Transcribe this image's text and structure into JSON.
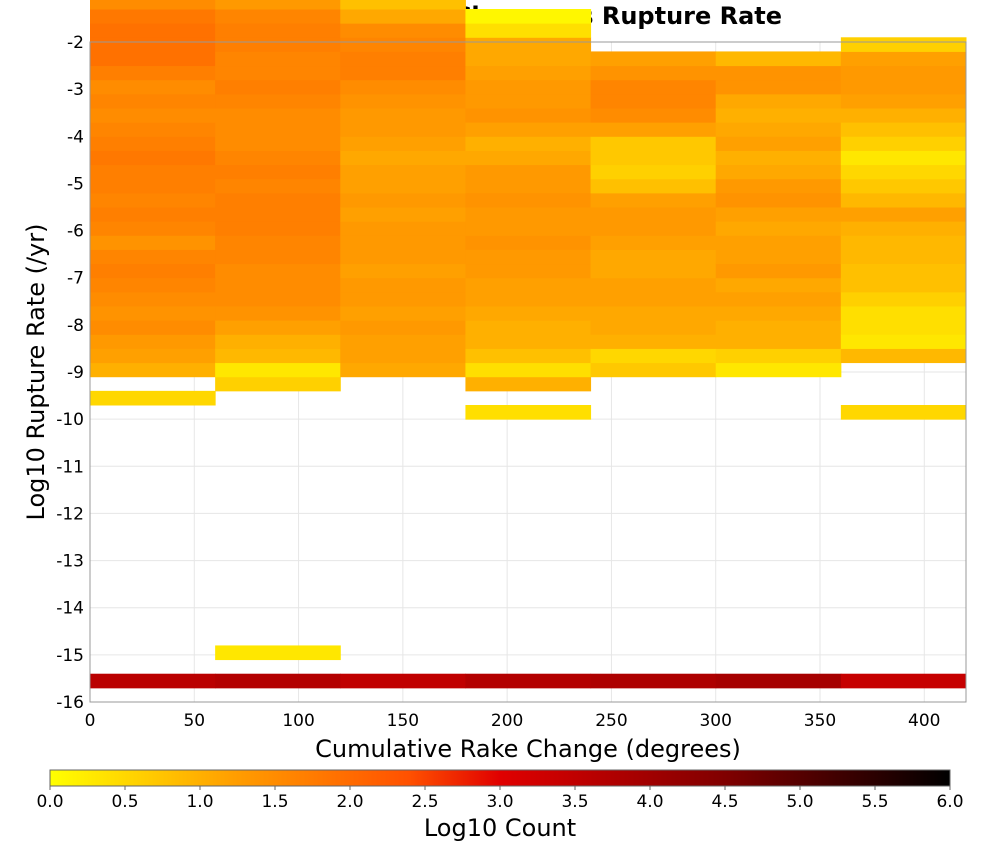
{
  "chart_data": {
    "type": "heatmap",
    "title": "Cumulative Rake Change vs Rupture Rate",
    "xlabel": "Cumulative Rake Change (degrees)",
    "ylabel": "Log10 Rupture Rate (/yr)",
    "xlim": [
      0,
      420
    ],
    "ylim": [
      -16,
      -2
    ],
    "x_ticks": [
      "0",
      "50",
      "100",
      "150",
      "200",
      "250",
      "300",
      "350",
      "400"
    ],
    "y_ticks": [
      "-2",
      "-3",
      "-4",
      "-5",
      "-6",
      "-7",
      "-8",
      "-9",
      "-10",
      "-11",
      "-12",
      "-13",
      "-14",
      "-15",
      "-16"
    ],
    "grid": true,
    "x_bin_width": 60,
    "y_bin_height": 0.3,
    "colorbar": {
      "label": "Log10 Count",
      "range": [
        0.0,
        6.0
      ],
      "ticks": [
        "0.0",
        "0.5",
        "1.0",
        "1.5",
        "2.0",
        "2.5",
        "3.0",
        "3.5",
        "4.0",
        "4.5",
        "5.0",
        "5.5",
        "6.0"
      ],
      "colors": [
        "#ffff00",
        "#ffa000",
        "#ff5000",
        "#e00000",
        "#800000",
        "#000000"
      ],
      "stops": [
        0.0,
        1.2,
        2.4,
        3.0,
        4.5,
        6.0
      ]
    },
    "columns": [
      {
        "x_start": 0,
        "y_start": -15.7,
        "values": [
          "3.6",
          "",
          "",
          "",
          "",
          "",
          "",
          "",
          "",
          "",
          "",
          "",
          "",
          "",
          "",
          "",
          "",
          "",
          "",
          "",
          "0.5",
          "",
          "1.0",
          "1.2",
          "1.3",
          "1.5",
          "1.4",
          "1.5",
          "1.6",
          "1.7",
          "1.6",
          "1.4",
          "1.6",
          "1.7",
          "1.6",
          "1.7",
          "1.7",
          "1.8",
          "1.7",
          "1.6",
          "1.5",
          "1.6",
          "1.5",
          "1.7",
          "1.9",
          "1.9",
          "1.9",
          "1.8",
          "1.5",
          "1.4",
          "1.2",
          "0.6"
        ]
      },
      {
        "x_start": 60,
        "y_start": -15.7,
        "values": [
          "3.7",
          "",
          "0.3",
          "",
          "",
          "",
          "",
          "",
          "",
          "",
          "",
          "",
          "",
          "",
          "",
          "",
          "",
          "",
          "",
          "",
          "",
          "0.6",
          "0.3",
          "0.9",
          "1.0",
          "1.2",
          "1.4",
          "1.5",
          "1.5",
          "1.5",
          "1.6",
          "1.6",
          "1.7",
          "1.7",
          "1.7",
          "1.6",
          "1.7",
          "1.6",
          "1.5",
          "1.5",
          "1.5",
          "1.6",
          "1.7",
          "1.6",
          "1.6",
          "1.7",
          "1.7",
          "1.6",
          "1.3",
          "1.0",
          "0.3"
        ]
      },
      {
        "x_start": 120,
        "y_start": -15.7,
        "values": [
          "3.5",
          "",
          "",
          "",
          "",
          "",
          "",
          "",
          "",
          "",
          "",
          "",
          "",
          "",
          "",
          "",
          "",
          "",
          "",
          "",
          "",
          "",
          "1.1",
          "1.2",
          "1.2",
          "1.3",
          "1.2",
          "1.3",
          "1.3",
          "1.2",
          "1.3",
          "1.3",
          "1.3",
          "1.2",
          "1.3",
          "1.2",
          "1.2",
          "1.1",
          "1.2",
          "1.3",
          "1.3",
          "1.4",
          "1.5",
          "1.7",
          "1.7",
          "1.6",
          "1.5",
          "1.1",
          "0.8"
        ]
      },
      {
        "x_start": 180,
        "y_start": -15.7,
        "values": [
          "3.7",
          "",
          "",
          "",
          "",
          "",
          "",
          "",
          "",
          "",
          "",
          "",
          "",
          "",
          "",
          "",
          "",
          "",
          "",
          "0.4",
          "",
          "1.0",
          "0.4",
          "0.8",
          "1.0",
          "1.0",
          "1.1",
          "1.2",
          "1.2",
          "1.3",
          "1.3",
          "1.4",
          "1.3",
          "1.3",
          "1.4",
          "1.3",
          "1.3",
          "1.1",
          "1.0",
          "1.2",
          "1.4",
          "1.3",
          "1.3",
          "1.2",
          "1.1",
          "1.1",
          "0.4",
          "0.1"
        ]
      },
      {
        "x_start": 240,
        "y_start": -15.7,
        "values": [
          "3.8",
          "",
          "",
          "",
          "",
          "",
          "",
          "",
          "",
          "",
          "",
          "",
          "",
          "",
          "",
          "",
          "",
          "",
          "",
          "",
          "",
          "",
          "0.7",
          "0.5",
          "1.0",
          "1.1",
          "1.1",
          "1.2",
          "1.2",
          "1.1",
          "1.1",
          "1.2",
          "1.3",
          "1.3",
          "1.2",
          "0.8",
          "0.6",
          "0.7",
          "0.7",
          "1.2",
          "1.5",
          "1.6",
          "1.6",
          "1.4",
          "1.2"
        ]
      },
      {
        "x_start": 300,
        "y_start": -15.7,
        "values": [
          "3.9",
          "",
          "",
          "",
          "",
          "",
          "",
          "",
          "",
          "",
          "",
          "",
          "",
          "",
          "",
          "",
          "",
          "",
          "",
          "",
          "",
          "",
          "0.3",
          "0.6",
          "1.0",
          "1.0",
          "1.1",
          "1.2",
          "1.1",
          "1.3",
          "1.2",
          "1.2",
          "1.1",
          "1.2",
          "1.4",
          "1.3",
          "1.1",
          "1.0",
          "1.2",
          "1.1",
          "1.0",
          "1.1",
          "1.4",
          "1.4",
          "0.9"
        ]
      },
      {
        "x_start": 360,
        "y_start": -15.7,
        "values": [
          "3.4",
          "",
          "",
          "",
          "",
          "",
          "",
          "",
          "",
          "",
          "",
          "",
          "",
          "",
          "",
          "",
          "",
          "",
          "",
          "0.5",
          "",
          "",
          "",
          "0.9",
          "0.3",
          "0.4",
          "0.4",
          "0.6",
          "0.8",
          "0.8",
          "0.9",
          "0.9",
          "1.0",
          "1.2",
          "0.9",
          "0.7",
          "0.5",
          "0.3",
          "0.6",
          "0.8",
          "1.0",
          "1.2",
          "1.3",
          "1.3",
          "1.2",
          "0.6"
        ]
      }
    ]
  }
}
